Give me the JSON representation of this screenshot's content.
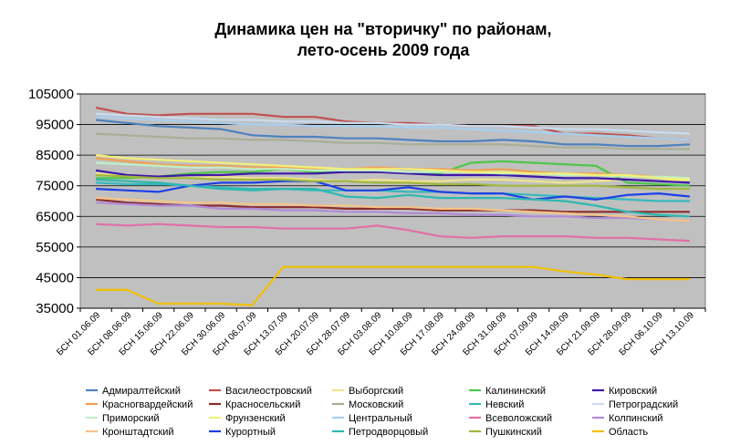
{
  "chart_data": {
    "type": "line",
    "title": [
      "Динамика цен на \"вторичку\" по районам,",
      "лето-осень 2009 года"
    ],
    "xlabel": "",
    "ylabel": "",
    "ylim": [
      35000,
      105000
    ],
    "yticks": [
      35000,
      45000,
      55000,
      65000,
      75000,
      85000,
      95000,
      105000
    ],
    "grid": true,
    "legend_position": "bottom",
    "categories": [
      "БСН 01.06.09",
      "БСН 08.06.09",
      "БСН 15.06.09",
      "БСН 22.06.09",
      "БСН 30.06.09",
      "БСН 06.07.09",
      "БСН 13.07.09",
      "БСН 20.07.09",
      "БСН 28.07.09",
      "БСН 03.08.09",
      "БСН 10.08.09",
      "БСН 17.08.09",
      "БСН 24.08.09",
      "БСН 31.08.09",
      "БСН 07.09.09",
      "БСН 14.09.09",
      "БСН 21.09.09",
      "БСН 28.09.09",
      "БСН 06.10.09",
      "БСН 13.10.09"
    ],
    "series": [
      {
        "name": "Адмиралтейский",
        "color": "#4f81bd",
        "values": [
          96500,
          95500,
          94500,
          94000,
          93500,
          91500,
          91000,
          91000,
          90500,
          90500,
          90000,
          89500,
          89500,
          90000,
          89500,
          88500,
          88500,
          88000,
          88000,
          88500
        ]
      },
      {
        "name": "Василеостровский",
        "color": "#c0504d",
        "values": [
          100500,
          98500,
          98000,
          98500,
          98500,
          98500,
          97500,
          97500,
          96000,
          95500,
          95500,
          95000,
          94500,
          94500,
          94500,
          92000,
          92000,
          91500,
          90500,
          90000
        ]
      },
      {
        "name": "Выборгский",
        "color": "#f2e38c",
        "values": [
          79000,
          78500,
          78000,
          77500,
          78000,
          77500,
          77500,
          77000,
          76500,
          77000,
          76500,
          76500,
          77000,
          77000,
          76500,
          76000,
          76500,
          77000,
          76500,
          77000
        ]
      },
      {
        "name": "Калининский",
        "color": "#4ec64a",
        "values": [
          77500,
          77500,
          78000,
          79000,
          79500,
          79500,
          80500,
          79500,
          79500,
          79500,
          79500,
          79000,
          82500,
          83000,
          82500,
          82000,
          81500,
          76000,
          75500,
          75000
        ]
      },
      {
        "name": "Кировский",
        "color": "#3f18a8",
        "values": [
          80000,
          78500,
          78000,
          78500,
          78500,
          79000,
          79000,
          79000,
          79500,
          79500,
          79000,
          78500,
          78500,
          78500,
          78000,
          77500,
          77500,
          77000,
          76500,
          76000
        ]
      },
      {
        "name": "Красногвардейский",
        "color": "#f0a054",
        "values": [
          84000,
          83000,
          82000,
          81500,
          81500,
          81000,
          81000,
          80500,
          80500,
          81000,
          80500,
          80500,
          80000,
          80500,
          79500,
          79000,
          79000,
          78500,
          78000,
          77500
        ]
      },
      {
        "name": "Красносельский",
        "color": "#8b2c2c",
        "values": [
          70500,
          69500,
          69000,
          68500,
          68500,
          68000,
          68000,
          68000,
          67500,
          67500,
          67500,
          67000,
          67000,
          67000,
          67000,
          66500,
          66500,
          66500,
          66500,
          66500
        ]
      },
      {
        "name": "Московский",
        "color": "#a8ae98",
        "values": [
          92000,
          91500,
          91000,
          90500,
          90500,
          90000,
          90000,
          89500,
          89000,
          89000,
          88500,
          88500,
          88500,
          88500,
          88000,
          87500,
          87500,
          87000,
          87000,
          87000
        ]
      },
      {
        "name": "Невский",
        "color": "#35b8bd",
        "values": [
          76000,
          75500,
          75500,
          75000,
          74500,
          74000,
          74000,
          73500,
          73500,
          73500,
          73000,
          73000,
          72500,
          72500,
          72000,
          71500,
          71000,
          70500,
          70000,
          70000
        ]
      },
      {
        "name": "Петроградский",
        "color": "#c8dcf0",
        "values": [
          98500,
          98000,
          97500,
          97000,
          96500,
          96500,
          96000,
          96000,
          95500,
          95500,
          95000,
          95000,
          94500,
          94500,
          94000,
          93500,
          93500,
          93000,
          92500,
          92000
        ]
      },
      {
        "name": "Приморский",
        "color": "#bff0c8",
        "values": [
          82500,
          82000,
          81500,
          81000,
          81000,
          80500,
          80500,
          80000,
          80000,
          80000,
          79500,
          79500,
          79500,
          79000,
          79000,
          78500,
          78500,
          78000,
          78000,
          77500
        ]
      },
      {
        "name": "Фрунзенский",
        "color": "#f2f07a",
        "values": [
          85000,
          84000,
          83500,
          83000,
          82500,
          82000,
          81500,
          81000,
          80500,
          80500,
          80500,
          80000,
          79500,
          79500,
          79000,
          79000,
          78500,
          78500,
          77500,
          77000
        ]
      },
      {
        "name": "Центральный",
        "color": "#a6cff0",
        "values": [
          97500,
          97000,
          96500,
          96000,
          95500,
          95000,
          95000,
          94500,
          94500,
          94500,
          94000,
          94000,
          93500,
          93000,
          92500,
          92000,
          91500,
          91000,
          90500,
          90000
        ]
      },
      {
        "name": "Всеволожский",
        "color": "#e070a8",
        "values": [
          62500,
          62000,
          62500,
          62000,
          61500,
          61500,
          61000,
          61000,
          61000,
          62000,
          60500,
          58500,
          58000,
          58500,
          58500,
          58500,
          58000,
          58000,
          57500,
          57000
        ]
      },
      {
        "name": "Колпинский",
        "color": "#b08ad8",
        "values": [
          69500,
          69000,
          68500,
          68500,
          67500,
          67500,
          67000,
          67000,
          66500,
          66500,
          66000,
          66000,
          65500,
          65500,
          65000,
          65000,
          64500,
          64500,
          64000,
          63500
        ]
      },
      {
        "name": "Кронштадтский",
        "color": "#f5c488",
        "values": [
          71000,
          70500,
          70000,
          69500,
          69500,
          69000,
          69000,
          68500,
          68500,
          68000,
          68000,
          67500,
          67500,
          67000,
          66500,
          66000,
          65500,
          65000,
          64000,
          63500
        ]
      },
      {
        "name": "Курортный",
        "color": "#1e40e6",
        "values": [
          74000,
          73500,
          73000,
          75000,
          76000,
          76000,
          76500,
          76500,
          73500,
          73500,
          74500,
          73000,
          72500,
          72500,
          70500,
          71500,
          70500,
          72000,
          72500,
          71500
        ]
      },
      {
        "name": "Петродворцовый",
        "color": "#2eb8b0",
        "values": [
          77000,
          76500,
          76000,
          75000,
          74000,
          73500,
          74000,
          74000,
          71500,
          71000,
          72000,
          71000,
          71000,
          71000,
          70500,
          70000,
          68500,
          66500,
          65500,
          65000
        ]
      },
      {
        "name": "Пушкинский",
        "color": "#9fb83c",
        "values": [
          78500,
          78000,
          77500,
          77500,
          77000,
          77000,
          77000,
          76500,
          76500,
          76000,
          76000,
          75500,
          75500,
          75000,
          75000,
          75000,
          75000,
          74500,
          74000,
          74000
        ]
      },
      {
        "name": "Область",
        "color": "#f0c000",
        "values": [
          41000,
          41000,
          36500,
          36500,
          36500,
          36000,
          48500,
          48500,
          48500,
          48500,
          48500,
          48500,
          48500,
          48500,
          48500,
          47000,
          46000,
          44500,
          44500,
          44500
        ]
      }
    ]
  }
}
